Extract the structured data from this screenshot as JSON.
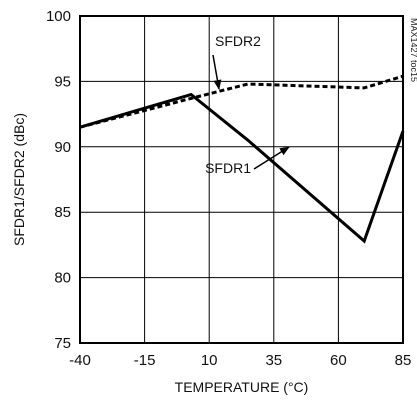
{
  "chart_data": {
    "type": "line",
    "title": "",
    "xlabel": "TEMPERATURE (°C)",
    "ylabel": "SFDR1/SFDR2 (dBc)",
    "xlim": [
      -40,
      85
    ],
    "ylim": [
      75,
      100
    ],
    "x_ticks": [
      "-40",
      "-15",
      "10",
      "35",
      "60",
      "85"
    ],
    "y_ticks": [
      "75",
      "80",
      "85",
      "90",
      "95",
      "100"
    ],
    "grid": true,
    "legend": "none",
    "series": [
      {
        "name": "SFDR1",
        "color": "#000000",
        "style": "solid",
        "x": [
          -40,
          3,
          25,
          70,
          85
        ],
        "y": [
          91.5,
          94.0,
          90.5,
          82.8,
          91.2
        ]
      },
      {
        "name": "SFDR2",
        "color": "#000000",
        "style": "dashed",
        "x": [
          -40,
          3,
          25,
          70,
          85
        ],
        "y": [
          91.5,
          93.7,
          94.8,
          94.5,
          95.4
        ]
      }
    ],
    "annotations": [
      {
        "text": "SFDR2",
        "series": "SFDR2"
      },
      {
        "text": "SFDR1",
        "series": "SFDR1"
      }
    ],
    "watermark": "MAX1427 toc15"
  }
}
